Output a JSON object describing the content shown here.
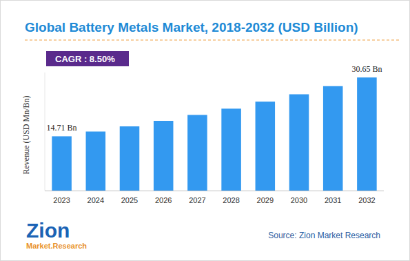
{
  "chart_data": {
    "type": "bar",
    "title": "Global Battery Metals Market, 2018-2032 (USD Billion)",
    "annotations": [
      "CAGR : 8.50%"
    ],
    "y_label": "Revenue (USD Mn/Bn)",
    "source": "Source: Zion Market Research",
    "logo": [
      "Zion",
      "Market.Research"
    ],
    "categories": [
      "2023",
      "2024",
      "2025",
      "2026",
      "2027",
      "2028",
      "2029",
      "2030",
      "2031",
      "2032"
    ],
    "values": [
      14.71,
      16.0,
      17.4,
      18.9,
      20.5,
      22.2,
      24.1,
      26.1,
      28.3,
      30.65
    ],
    "value_labels": [
      "14.71 Bn",
      null,
      null,
      null,
      null,
      null,
      null,
      null,
      null,
      "30.65 Bn"
    ],
    "color": "#3399f0",
    "ylim": [
      0,
      32
    ],
    "grid": false,
    "data_labels": true,
    "tick_labels": "x"
  }
}
